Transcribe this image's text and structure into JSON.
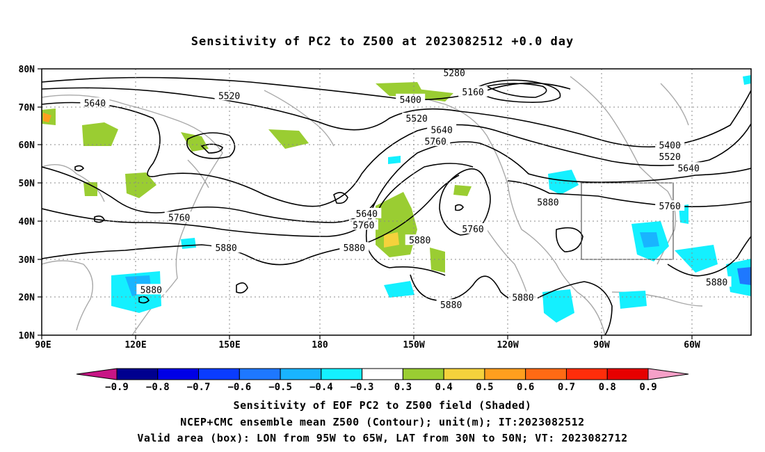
{
  "title": "Sensitivity of PC2 to Z500 at 2023082512 +0.0 day",
  "map": {
    "lat_ticks": [
      "80N",
      "70N",
      "60N",
      "50N",
      "40N",
      "30N",
      "20N",
      "10N"
    ],
    "lon_ticks": [
      "90E",
      "120E",
      "150E",
      "180",
      "150W",
      "120W",
      "90W",
      "60W"
    ],
    "lat_range": [
      10,
      80
    ],
    "lon_range": [
      90,
      317
    ],
    "grid_lines": "dotted",
    "valid_box": {
      "lon_from": "95W",
      "lon_to": "65W",
      "lat_from": "30N",
      "lat_to": "50N"
    },
    "contour_labels": [
      {
        "text": "5280",
        "lon": 222,
        "lat": 79
      },
      {
        "text": "5160",
        "lon": 228,
        "lat": 74
      },
      {
        "text": "5400",
        "lon": 208,
        "lat": 72
      },
      {
        "text": "5520",
        "lon": 150,
        "lat": 73
      },
      {
        "text": "5640",
        "lon": 107,
        "lat": 71
      },
      {
        "text": "5520",
        "lon": 210,
        "lat": 67
      },
      {
        "text": "5640",
        "lon": 218,
        "lat": 64
      },
      {
        "text": "5760",
        "lon": 216,
        "lat": 61
      },
      {
        "text": "5400",
        "lon": 291,
        "lat": 60
      },
      {
        "text": "5520",
        "lon": 291,
        "lat": 57
      },
      {
        "text": "5640",
        "lon": 297,
        "lat": 54
      },
      {
        "text": "5880",
        "lon": 252,
        "lat": 45
      },
      {
        "text": "5760",
        "lon": 291,
        "lat": 44
      },
      {
        "text": "5640",
        "lon": 194,
        "lat": 42
      },
      {
        "text": "5760",
        "lon": 134,
        "lat": 41
      },
      {
        "text": "5760",
        "lon": 193,
        "lat": 39
      },
      {
        "text": "5760",
        "lon": 228,
        "lat": 38
      },
      {
        "text": "5880",
        "lon": 211,
        "lat": 35
      },
      {
        "text": "5880",
        "lon": 149,
        "lat": 33
      },
      {
        "text": "5880",
        "lon": 190,
        "lat": 33
      },
      {
        "text": "5880",
        "lon": 306,
        "lat": 24
      },
      {
        "text": "5880",
        "lon": 125,
        "lat": 22
      },
      {
        "text": "5880",
        "lon": 221,
        "lat": 18
      },
      {
        "text": "5880",
        "lon": 244,
        "lat": 20
      }
    ]
  },
  "colorbar": {
    "labels": [
      "-0.9",
      "-0.8",
      "-0.7",
      "-0.6",
      "-0.5",
      "-0.4",
      "-0.3",
      "0.3",
      "0.4",
      "0.5",
      "0.6",
      "0.7",
      "0.8",
      "0.9"
    ],
    "colors": [
      "#00008f",
      "#0000e6",
      "#0a3cff",
      "#1e78ff",
      "#19b4ff",
      "#14f0ff",
      "#ffffff",
      "#9acd32",
      "#f5d23c",
      "#ff9f1e",
      "#ff6a14",
      "#ff2d0a",
      "#e60000"
    ],
    "low_end_color": "#c71585",
    "high_end_color": "#f5a0c8"
  },
  "captions": {
    "line1": "Sensitivity of EOF PC2 to Z500 field (Shaded)",
    "line2": "NCEP+CMC ensemble mean Z500 (Contour); unit(m); IT:2023082512",
    "line3": "Valid area (box): LON from 95W to 65W, LAT from 30N to 50N; VT: 2023082712"
  }
}
